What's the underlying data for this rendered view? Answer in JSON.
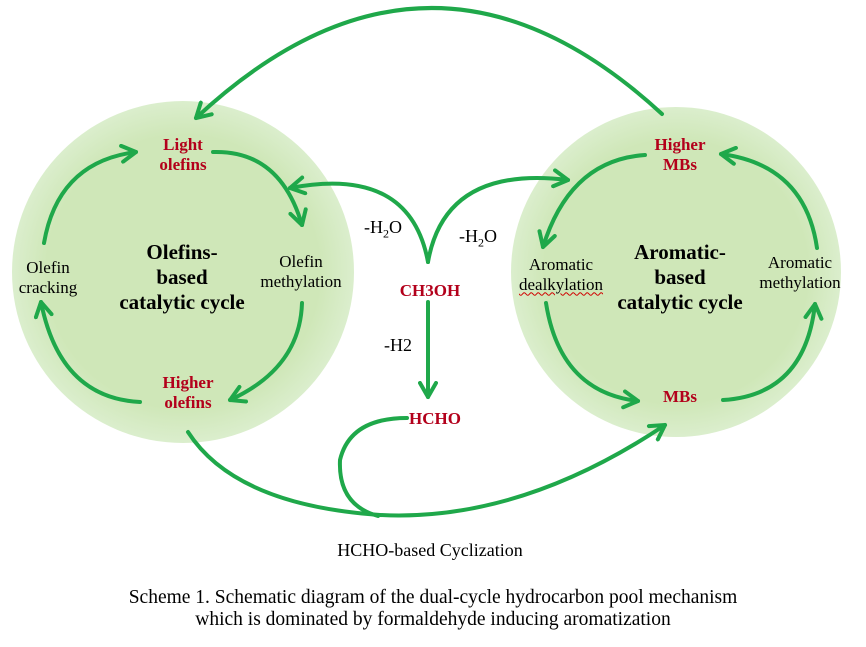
{
  "colors": {
    "arrow": "#1fa84a",
    "label_red": "#b3001b",
    "circle_fill": "#cfe7b8"
  },
  "left_cycle": {
    "title": [
      "Olefins-",
      "based",
      "catalytic cycle"
    ],
    "top": [
      "Light",
      "olefins"
    ],
    "right": [
      "Olefin",
      "methylation"
    ],
    "bottom": [
      "Higher",
      "olefins"
    ],
    "left": [
      "Olefin",
      "cracking"
    ]
  },
  "right_cycle": {
    "title": [
      "Aromatic-",
      "based",
      "catalytic cycle"
    ],
    "top": [
      "Higher",
      "MBs"
    ],
    "left": [
      "Aromatic",
      "dealkylation"
    ],
    "bottom": "MBs",
    "right": [
      "Aromatic",
      "methylation"
    ]
  },
  "center": {
    "methanol": "CH3OH",
    "formaldehyde": "HCHO",
    "water_left": {
      "base": "-H",
      "sub": "2",
      "tail": "O"
    },
    "water_right": {
      "base": "-H",
      "sub": "2",
      "tail": "O"
    },
    "hydrogen": "-H2",
    "cyclization": "HCHO-based Cyclization"
  },
  "caption": [
    "Scheme 1. Schematic diagram of the dual-cycle hydrocarbon pool mechanism",
    "which is dominated by formaldehyde inducing aromatization"
  ]
}
